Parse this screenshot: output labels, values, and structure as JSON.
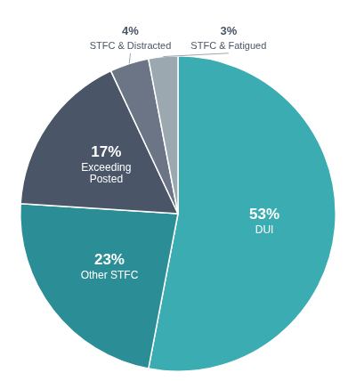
{
  "chart_data": {
    "type": "pie",
    "categories": [
      "DUI",
      "Other STFC",
      "Exceeding\nPosted",
      "STFC & Distracted",
      "STFC & Fatigued"
    ],
    "values": [
      53,
      23,
      17,
      4,
      3
    ],
    "value_labels": [
      "53%",
      "23%",
      "17%",
      "4%",
      "3%"
    ],
    "colors": [
      "#3AACB2",
      "#2B8E96",
      "#4A5568",
      "#6B7585",
      "#9BA8B0"
    ],
    "data_labels": true,
    "legend": false
  }
}
